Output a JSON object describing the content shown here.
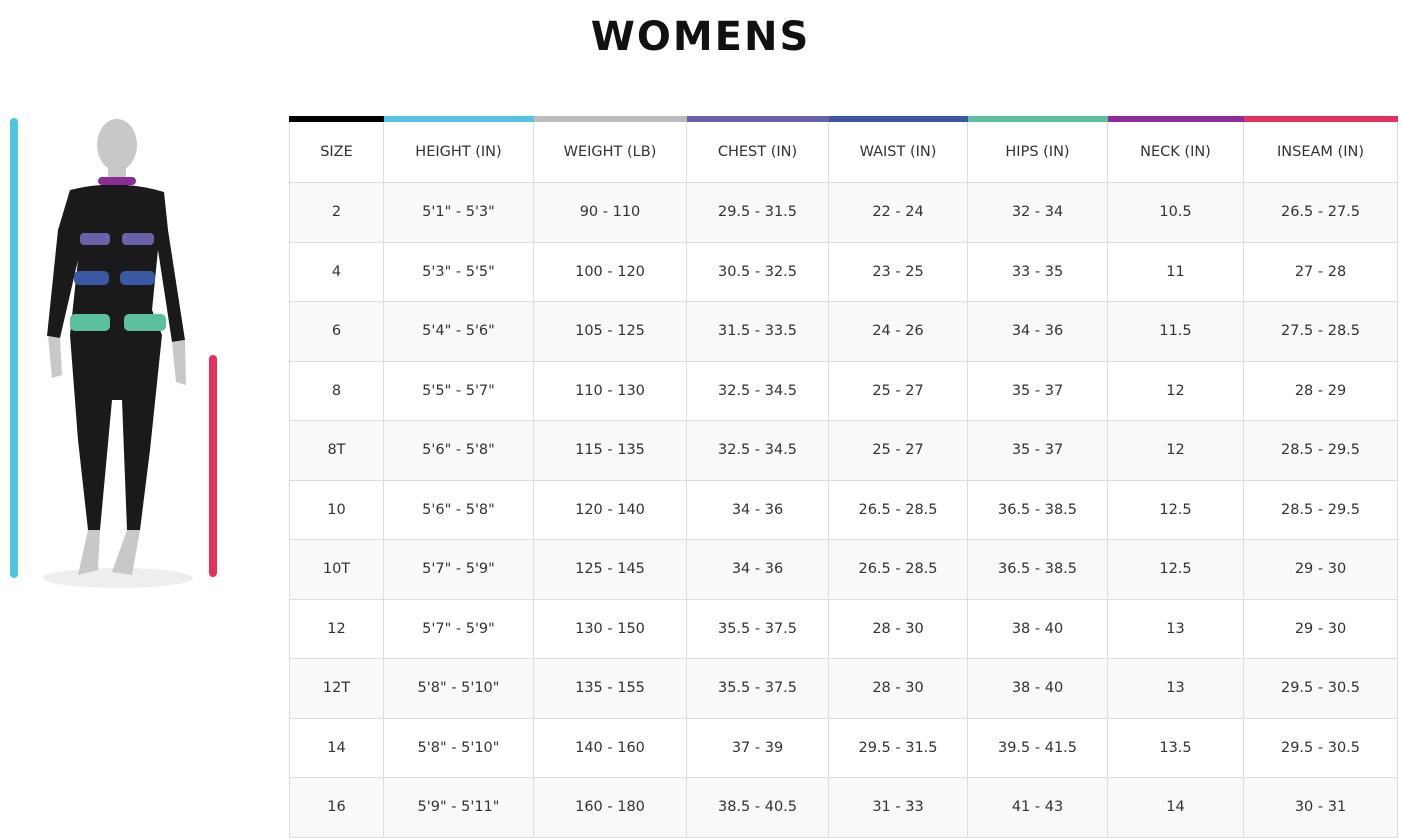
{
  "title": "WOMENS",
  "colors": {
    "size": "#000000",
    "height": "#54c3e0",
    "weight": "#bbbbbb",
    "chest": "#6a62a8",
    "waist": "#3a58a3",
    "hips": "#5cc09e",
    "neck": "#8b2d93",
    "inseam": "#e3305f"
  },
  "headers": [
    "SIZE",
    "HEIGHT (IN)",
    "WEIGHT (LB)",
    "CHEST (IN)",
    "WAIST (IN)",
    "HIPS (IN)",
    "NECK (IN)",
    "INSEAM (IN)"
  ],
  "rows": [
    [
      "2",
      "5'1\" - 5'3\"",
      "90 - 110",
      "29.5 - 31.5",
      "22 - 24",
      "32 - 34",
      "10.5",
      "26.5 - 27.5"
    ],
    [
      "4",
      "5'3\" - 5'5\"",
      "100 - 120",
      "30.5 - 32.5",
      "23 - 25",
      "33 - 35",
      "11",
      "27 - 28"
    ],
    [
      "6",
      "5'4\" - 5'6\"",
      "105 - 125",
      "31.5 - 33.5",
      "24 - 26",
      "34 - 36",
      "11.5",
      "27.5 - 28.5"
    ],
    [
      "8",
      "5'5\" - 5'7\"",
      "110 - 130",
      "32.5 - 34.5",
      "25 - 27",
      "35 - 37",
      "12",
      "28 - 29"
    ],
    [
      "8T",
      "5'6\" - 5'8\"",
      "115 - 135",
      "32.5 - 34.5",
      "25 - 27",
      "35 - 37",
      "12",
      "28.5 - 29.5"
    ],
    [
      "10",
      "5'6\" - 5'8\"",
      "120 - 140",
      "34 - 36",
      "26.5 - 28.5",
      "36.5 - 38.5",
      "12.5",
      "28.5 - 29.5"
    ],
    [
      "10T",
      "5'7\" - 5'9\"",
      "125 - 145",
      "34 - 36",
      "26.5 - 28.5",
      "36.5 - 38.5",
      "12.5",
      "29 - 30"
    ],
    [
      "12",
      "5'7\" - 5'9\"",
      "130 - 150",
      "35.5 - 37.5",
      "28 - 30",
      "38 - 40",
      "13",
      "29 - 30"
    ],
    [
      "12T",
      "5'8\" - 5'10\"",
      "135 - 155",
      "35.5 - 37.5",
      "28 - 30",
      "38 - 40",
      "13",
      "29.5 - 30.5"
    ],
    [
      "14",
      "5'8\" - 5'10\"",
      "140 - 160",
      "37 - 39",
      "29.5 - 31.5",
      "39.5 - 41.5",
      "13.5",
      "29.5 - 30.5"
    ],
    [
      "16",
      "5'9\" - 5'11\"",
      "160 - 180",
      "38.5 - 40.5",
      "31 - 33",
      "41 - 43",
      "14",
      "30 - 31"
    ]
  ]
}
